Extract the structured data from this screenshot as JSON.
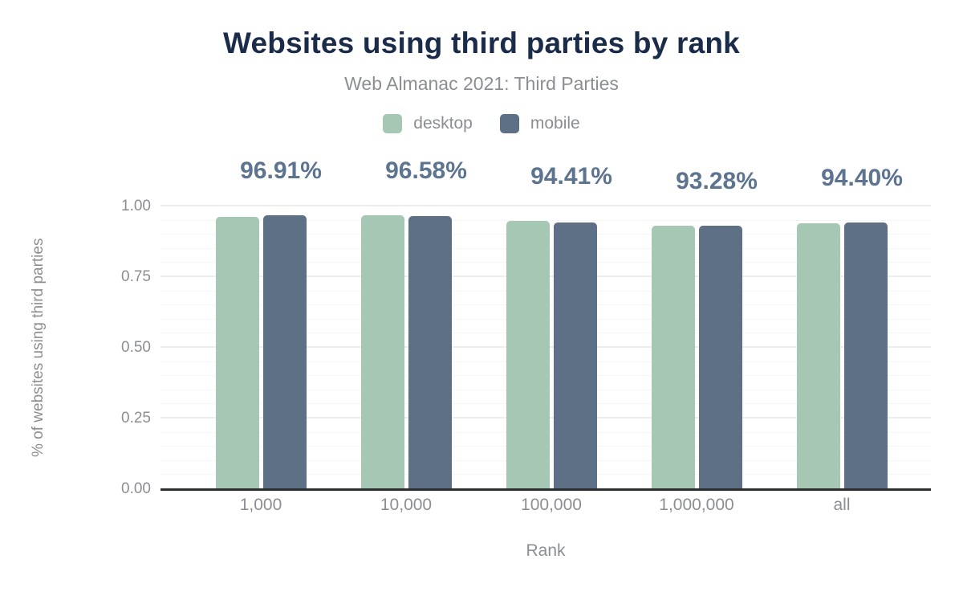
{
  "colors": {
    "title": "#1b2b4a",
    "muted": "#8b8e92",
    "label": "#5d7490",
    "axis": "#2e2f31",
    "grid_minor": "#f6f6f6",
    "grid_major": "#ededed"
  },
  "chart_data": {
    "type": "bar",
    "title": "Websites using third parties by rank",
    "subtitle": "Web Almanac 2021: Third Parties",
    "xlabel": "Rank",
    "ylabel": "% of websites using third parties",
    "categories": [
      "1,000",
      "10,000",
      "100,000",
      "1,000,000",
      "all"
    ],
    "series": [
      {
        "name": "desktop",
        "color": "#a5c7b4",
        "values": [
          0.962,
          0.969,
          0.949,
          0.931,
          0.939
        ]
      },
      {
        "name": "mobile",
        "color": "#5e7086",
        "values": [
          0.9691,
          0.9658,
          0.9441,
          0.9328,
          0.944
        ]
      }
    ],
    "bar_labels": [
      "96.91%",
      "96.58%",
      "94.41%",
      "93.28%",
      "94.40%"
    ],
    "bar_labels_series": "mobile",
    "y_ticks": [
      "0.00",
      "0.25",
      "0.50",
      "0.75",
      "1.00"
    ],
    "ylim": [
      0,
      1
    ],
    "grid": {
      "minor_step": 0.05,
      "major_step": 0.25,
      "visible": true
    },
    "legend_position": "top"
  }
}
